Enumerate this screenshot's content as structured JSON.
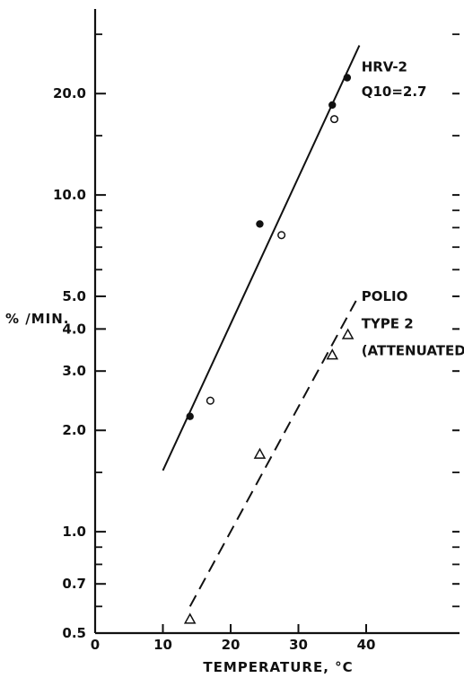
{
  "chart_data": {
    "type": "scatter",
    "xlabel": "TEMPERATURE, °C",
    "ylabel": "% /MIN.",
    "xlim": [
      0,
      55
    ],
    "ylim": [
      0.5,
      35
    ],
    "yscale": "log",
    "x_ticks": [
      0,
      10,
      20,
      30,
      40
    ],
    "x_tick_labels": [
      "0",
      "10",
      "20",
      "30",
      "40"
    ],
    "y_ticks": [
      0.5,
      0.7,
      1.0,
      2.0,
      3.0,
      4.0,
      5.0,
      10.0,
      20.0
    ],
    "y_tick_labels": [
      "0.5",
      "0.7",
      "1.0",
      "2.0",
      "3.0",
      "4.0",
      "5.0",
      "10.0",
      "20.0"
    ],
    "y_minor_ticks": [
      0.6,
      0.8,
      0.9,
      1.5,
      6,
      7,
      8,
      9,
      15,
      30
    ],
    "grid": false,
    "series": [
      {
        "name": "HRV-2 Q10=2.7",
        "marker": "filled-circle",
        "x": [
          14,
          24.3,
          35,
          37.2
        ],
        "y": [
          2.2,
          8.2,
          18.5,
          22.3
        ]
      },
      {
        "name": "HRV-2 Q10=2.7",
        "marker": "open-circle",
        "x": [
          17,
          27.5,
          35.3
        ],
        "y": [
          2.45,
          7.6,
          16.8
        ]
      },
      {
        "name": "POLIO TYPE 2 (ATTENUATED)",
        "marker": "open-triangle",
        "x": [
          14,
          24.3,
          35,
          37.3
        ],
        "y": [
          0.55,
          1.7,
          3.35,
          3.85
        ]
      }
    ],
    "fit_lines": [
      {
        "series": "HRV-2 Q10=2.7",
        "style": "solid",
        "x": [
          10,
          39
        ],
        "y": [
          1.52,
          27.8
        ]
      },
      {
        "series": "POLIO TYPE 2 (ATTENUATED)",
        "style": "dashed",
        "x": [
          14,
          38.5
        ],
        "y": [
          0.6,
          4.85
        ]
      }
    ],
    "annotations": [
      {
        "text": "HRV-2",
        "x": 39.3,
        "y": 24
      },
      {
        "text": "Q10=2.7",
        "x": 39.3,
        "y": 20.3
      },
      {
        "text": "POLIO",
        "x": 39.3,
        "y": 5.0
      },
      {
        "text": "TYPE 2",
        "x": 39.3,
        "y": 4.15
      },
      {
        "text": "(ATTENUATED)",
        "x": 39.3,
        "y": 3.45
      }
    ]
  }
}
